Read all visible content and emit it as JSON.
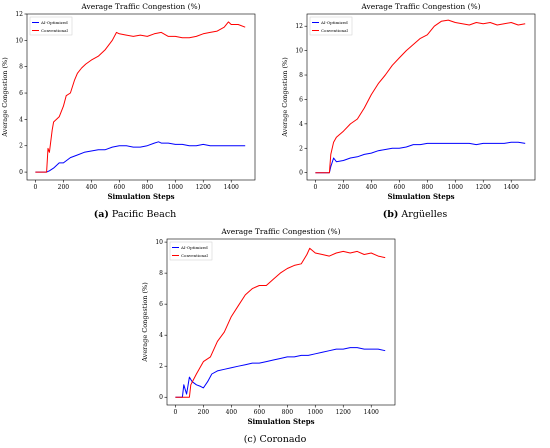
{
  "panels": [
    {
      "caption_tag": "(a)",
      "caption_text": " Pacific Beach",
      "chart_data": {
        "type": "line",
        "title": "Average Traffic Congestion (%)",
        "xlabel": "Simulation Steps",
        "ylabel": "Average Congestion (%)",
        "xlim": [
          -60,
          1570
        ],
        "ylim": [
          -0.6,
          12
        ],
        "xticks": [
          0,
          200,
          400,
          600,
          800,
          1000,
          1200,
          1400
        ],
        "yticks": [
          0,
          2,
          4,
          6,
          8,
          10,
          12
        ],
        "legend_position": "top-left",
        "grid": false,
        "series": [
          {
            "name": "AI-Optimized",
            "color": "#0000ff",
            "x": [
              0,
              80,
              100,
              130,
              150,
              170,
              200,
              250,
              300,
              350,
              400,
              450,
              500,
              550,
              600,
              650,
              700,
              750,
              800,
              850,
              880,
              900,
              950,
              1000,
              1050,
              1100,
              1150,
              1200,
              1250,
              1300,
              1350,
              1400,
              1450,
              1500
            ],
            "y": [
              0,
              0,
              0.1,
              0.3,
              0.5,
              0.7,
              0.7,
              1.1,
              1.3,
              1.5,
              1.6,
              1.7,
              1.7,
              1.9,
              2.0,
              2.0,
              1.9,
              1.9,
              2.0,
              2.2,
              2.3,
              2.2,
              2.2,
              2.1,
              2.1,
              2.0,
              2.0,
              2.1,
              2.0,
              2.0,
              2.0,
              2.0,
              2.0,
              2.0
            ]
          },
          {
            "name": "Conventional",
            "color": "#ff0000",
            "x": [
              0,
              80,
              90,
              100,
              120,
              130,
              150,
              170,
              200,
              220,
              250,
              280,
              300,
              330,
              360,
              400,
              450,
              500,
              550,
              580,
              600,
              650,
              700,
              750,
              800,
              850,
              900,
              950,
              1000,
              1050,
              1100,
              1150,
              1200,
              1250,
              1300,
              1350,
              1380,
              1400,
              1450,
              1500
            ],
            "y": [
              0,
              0,
              1.8,
              1.5,
              3.2,
              3.8,
              4.0,
              4.2,
              5.0,
              5.8,
              6.0,
              7.0,
              7.5,
              7.9,
              8.2,
              8.5,
              8.8,
              9.3,
              10.0,
              10.6,
              10.5,
              10.4,
              10.3,
              10.4,
              10.3,
              10.5,
              10.6,
              10.3,
              10.3,
              10.2,
              10.2,
              10.3,
              10.5,
              10.6,
              10.7,
              11.0,
              11.4,
              11.2,
              11.2,
              11.0
            ]
          }
        ]
      }
    },
    {
      "caption_tag": "(b)",
      "caption_text": " Argüelles",
      "chart_data": {
        "type": "line",
        "title": "Average Traffic Congestion (%)",
        "xlabel": "Simulation Steps",
        "ylabel": "Average Congestion (%)",
        "xlim": [
          -60,
          1570
        ],
        "ylim": [
          -0.6,
          13
        ],
        "xticks": [
          0,
          200,
          400,
          600,
          800,
          1000,
          1200,
          1400
        ],
        "yticks": [
          0,
          2,
          4,
          6,
          8,
          10,
          12
        ],
        "legend_position": "top-left",
        "grid": false,
        "series": [
          {
            "name": "AI-Optimized",
            "color": "#0000ff",
            "x": [
              0,
              100,
              110,
              130,
              150,
              200,
              250,
              300,
              350,
              400,
              450,
              500,
              550,
              600,
              650,
              700,
              750,
              800,
              850,
              900,
              950,
              1000,
              1050,
              1100,
              1150,
              1200,
              1250,
              1300,
              1350,
              1400,
              1450,
              1500
            ],
            "y": [
              0,
              0,
              0.5,
              1.2,
              0.9,
              1.0,
              1.2,
              1.3,
              1.5,
              1.6,
              1.8,
              1.9,
              2.0,
              2.0,
              2.1,
              2.3,
              2.3,
              2.4,
              2.4,
              2.4,
              2.4,
              2.4,
              2.4,
              2.4,
              2.3,
              2.4,
              2.4,
              2.4,
              2.4,
              2.5,
              2.5,
              2.4
            ]
          },
          {
            "name": "Conventional",
            "color": "#ff0000",
            "x": [
              0,
              100,
              110,
              130,
              150,
              200,
              250,
              300,
              350,
              400,
              450,
              500,
              550,
              600,
              650,
              700,
              750,
              800,
              850,
              900,
              950,
              1000,
              1050,
              1100,
              1150,
              1200,
              1250,
              1300,
              1350,
              1400,
              1450,
              1500
            ],
            "y": [
              0,
              0,
              1.5,
              2.5,
              2.9,
              3.4,
              4.0,
              4.4,
              5.3,
              6.4,
              7.3,
              8.0,
              8.8,
              9.4,
              10.0,
              10.5,
              11.0,
              11.3,
              12.0,
              12.4,
              12.5,
              12.3,
              12.2,
              12.1,
              12.3,
              12.2,
              12.3,
              12.1,
              12.2,
              12.3,
              12.1,
              12.2
            ]
          }
        ]
      }
    },
    {
      "caption_tag": "",
      "caption_text": "(c) Coronado",
      "chart_data": {
        "type": "line",
        "title": "Average Traffic Congestion (%)",
        "xlabel": "Simulation Steps",
        "ylabel": "Average Congestion (%)",
        "xlim": [
          -60,
          1570
        ],
        "ylim": [
          -0.5,
          10.2
        ],
        "xticks": [
          0,
          200,
          400,
          600,
          800,
          1000,
          1200,
          1400
        ],
        "yticks": [
          0,
          2,
          4,
          6,
          8,
          10
        ],
        "legend_position": "top-left",
        "grid": false,
        "series": [
          {
            "name": "AI-Optimized",
            "color": "#0000ff",
            "x": [
              0,
              50,
              60,
              80,
              100,
              120,
              150,
              180,
              200,
              230,
              260,
              300,
              350,
              400,
              450,
              500,
              550,
              600,
              650,
              700,
              750,
              800,
              850,
              900,
              950,
              1000,
              1050,
              1100,
              1150,
              1200,
              1250,
              1300,
              1350,
              1400,
              1450,
              1500
            ],
            "y": [
              0,
              0,
              0.8,
              0.2,
              1.3,
              1.0,
              0.8,
              0.7,
              0.6,
              1.0,
              1.5,
              1.7,
              1.8,
              1.9,
              2.0,
              2.1,
              2.2,
              2.2,
              2.3,
              2.4,
              2.5,
              2.6,
              2.6,
              2.7,
              2.7,
              2.8,
              2.9,
              3.0,
              3.1,
              3.1,
              3.2,
              3.2,
              3.1,
              3.1,
              3.1,
              3.0
            ]
          },
          {
            "name": "Conventional",
            "color": "#ff0000",
            "x": [
              0,
              100,
              110,
              150,
              200,
              250,
              300,
              350,
              400,
              450,
              500,
              550,
              600,
              650,
              700,
              750,
              800,
              850,
              900,
              940,
              960,
              1000,
              1050,
              1100,
              1150,
              1200,
              1250,
              1300,
              1350,
              1400,
              1450,
              1500
            ],
            "y": [
              0,
              0,
              0.8,
              1.5,
              2.3,
              2.6,
              3.6,
              4.2,
              5.2,
              5.9,
              6.6,
              7.0,
              7.2,
              7.2,
              7.6,
              8.0,
              8.3,
              8.5,
              8.6,
              9.2,
              9.6,
              9.3,
              9.2,
              9.1,
              9.3,
              9.4,
              9.3,
              9.4,
              9.2,
              9.3,
              9.1,
              9.0
            ]
          }
        ]
      }
    }
  ]
}
